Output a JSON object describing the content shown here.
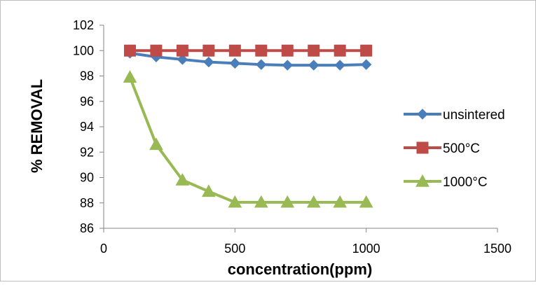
{
  "chart_data": {
    "type": "line",
    "title": "",
    "xlabel": "concentration(ppm)",
    "ylabel": "% REMOVAL",
    "xlim": [
      0,
      1500
    ],
    "ylim": [
      86,
      102
    ],
    "x_ticks": [
      0,
      500,
      1000,
      1500
    ],
    "y_ticks": [
      86,
      88,
      90,
      92,
      94,
      96,
      98,
      100,
      102
    ],
    "x_tick_labels": [
      "0",
      "500",
      "1000",
      "1500"
    ],
    "y_tick_labels": [
      "86",
      "88",
      "90",
      "92",
      "94",
      "96",
      "98",
      "100",
      "102"
    ],
    "grid": false,
    "legend_position": "right",
    "x": [
      100,
      200,
      300,
      400,
      500,
      600,
      700,
      800,
      900,
      1000
    ],
    "series": [
      {
        "name": "unsintered",
        "color": "#4a7ebb",
        "marker": "diamond",
        "values": [
          99.8,
          99.5,
          99.3,
          99.1,
          99.0,
          98.9,
          98.85,
          98.85,
          98.85,
          98.9
        ]
      },
      {
        "name": "500°C",
        "color": "#be4b48",
        "marker": "square",
        "values": [
          100,
          100,
          100,
          100,
          100,
          100,
          100,
          100,
          100,
          100
        ]
      },
      {
        "name": "1000°C",
        "color": "#98b954",
        "marker": "triangle",
        "values": [
          97.9,
          92.6,
          89.8,
          88.9,
          88.05,
          88.05,
          88.05,
          88.05,
          88.05,
          88.05
        ]
      }
    ]
  }
}
